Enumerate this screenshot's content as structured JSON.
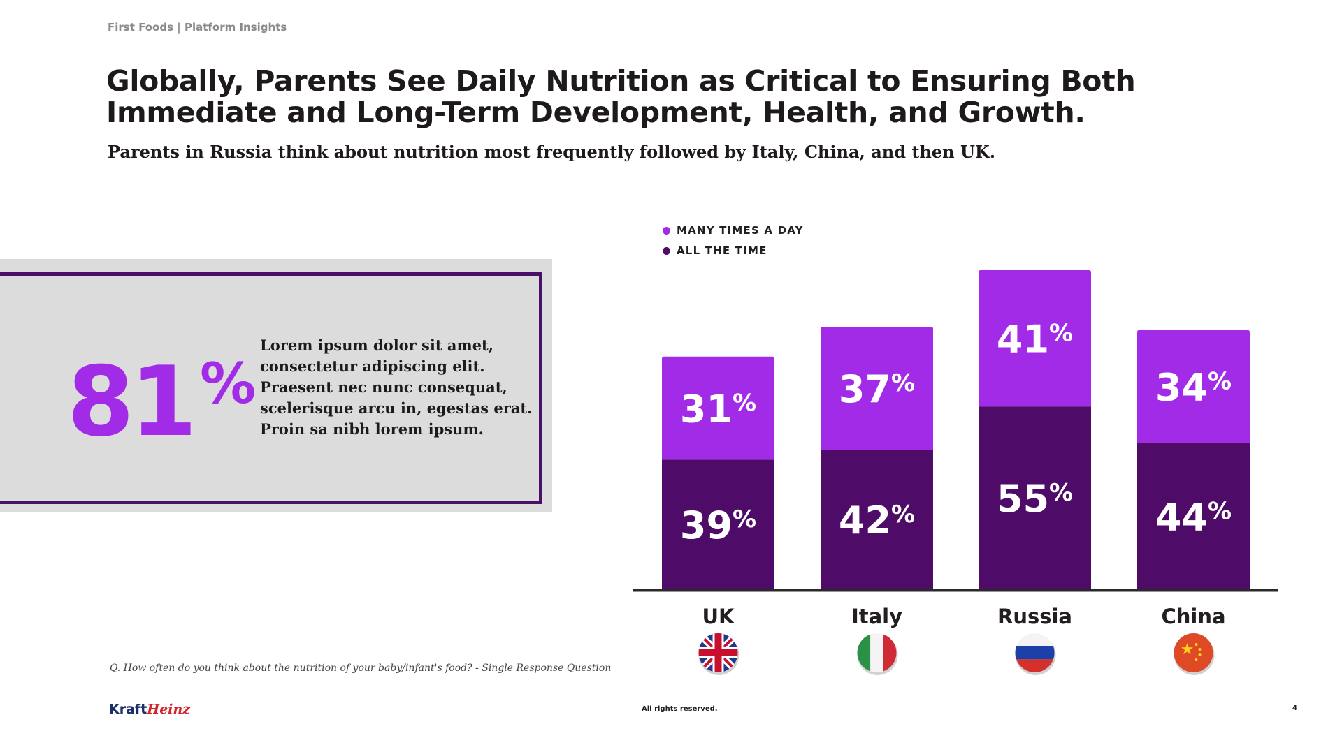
{
  "header": {
    "brand": "First Foods | Platform Insights"
  },
  "title": "Globally, Parents See Daily Nutrition as Critical to Ensuring Both Immediate and Long-Term Development, Health, and Growth.",
  "subtitle": "Parents in Russia think about nutrition most frequently followed by Italy, China, and then UK.",
  "stat": {
    "number": "81",
    "unit": "%",
    "text": "Lorem ipsum dolor sit amet, consectetur adipiscing elit. Praesent nec nunc consequat, scelerisque arcu in, egestas erat. Proin sa nibh lorem ipsum."
  },
  "footnote": "Q. How often do you think about the nutrition of your baby/infant's food? - Single Response Question",
  "footer": {
    "logo_left": "Kraft",
    "logo_right": "Heinz",
    "rights": "All rights reserved.",
    "page": "4"
  },
  "colors": {
    "many_times": "#a22be8",
    "all_the_time": "#4e0b68",
    "axis": "#2a2a2a",
    "panel": "#dcdcdd",
    "frame": "#4a0e6b"
  },
  "chart_data": {
    "type": "bar",
    "stacked": true,
    "categories": [
      "UK",
      "Italy",
      "Russia",
      "China"
    ],
    "flags": [
      "uk-flag-icon",
      "italy-flag-icon",
      "russia-flag-icon",
      "china-flag-icon"
    ],
    "series": [
      {
        "name": "ALL THE TIME",
        "values": [
          39,
          42,
          55,
          44
        ],
        "color": "#4e0b68"
      },
      {
        "name": "MANY TIMES A DAY",
        "values": [
          31,
          37,
          41,
          34
        ],
        "color": "#a22be8"
      }
    ],
    "unit": "%",
    "legend": "top-left",
    "grid": false
  }
}
